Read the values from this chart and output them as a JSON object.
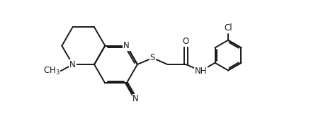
{
  "background_color": "#ffffff",
  "line_color": "#1a1a1a",
  "line_width": 1.4,
  "font_size": 8.5,
  "fig_width": 4.64,
  "fig_height": 1.78,
  "dpi": 100,
  "xlim": [
    -0.3,
    9.8
  ],
  "ylim": [
    -2.8,
    3.0
  ]
}
